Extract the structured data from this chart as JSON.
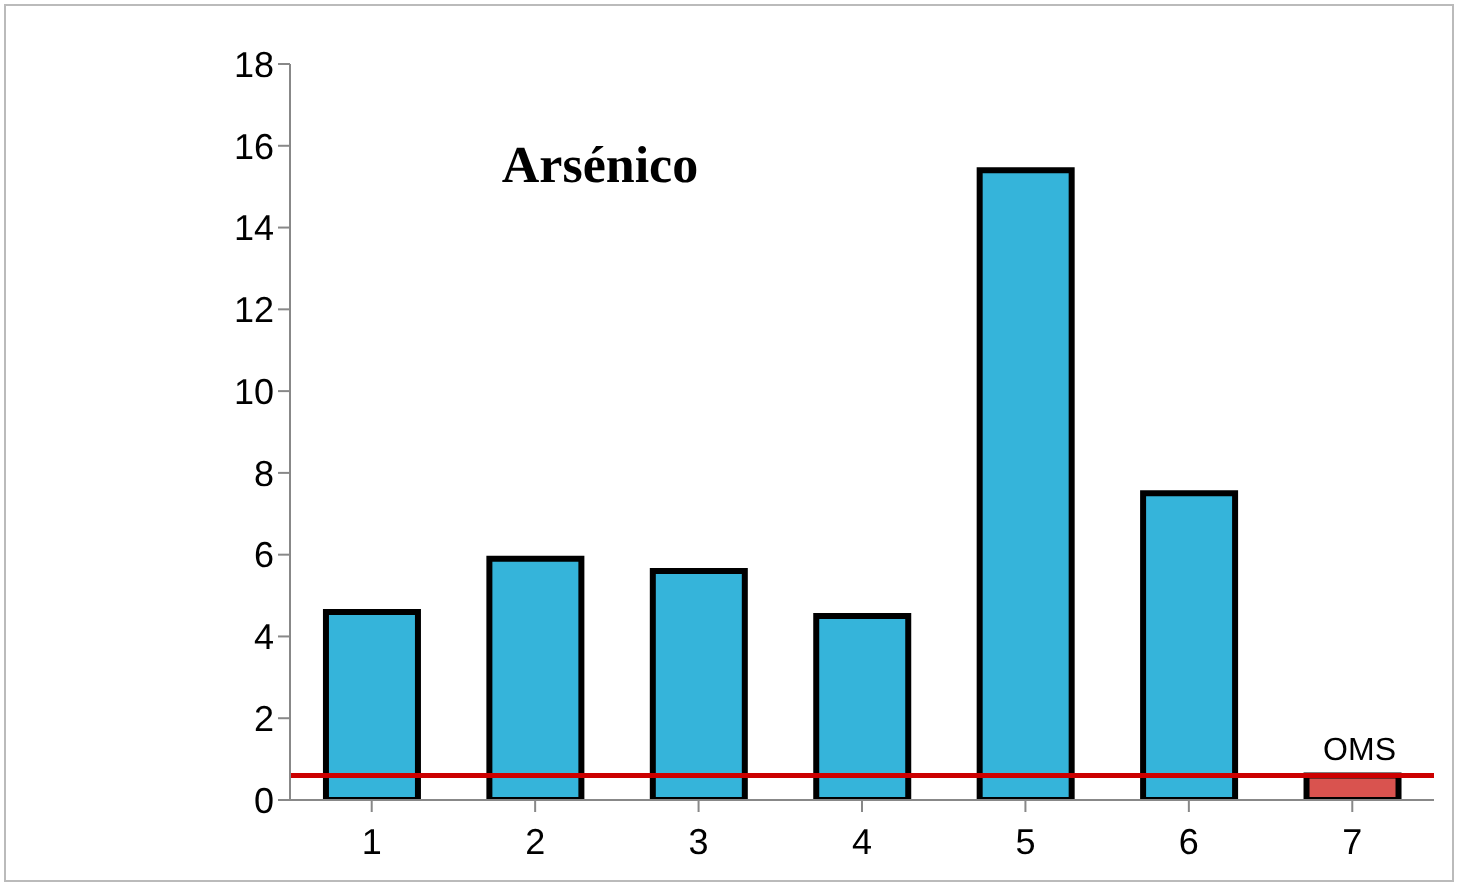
{
  "chart_data": {
    "type": "bar",
    "title": "Arsénico",
    "categories": [
      "1",
      "2",
      "3",
      "4",
      "5",
      "6",
      "7"
    ],
    "values": [
      4.6,
      5.9,
      5.6,
      4.5,
      15.4,
      7.5,
      0.6
    ],
    "colors": [
      "#35b4da",
      "#35b4da",
      "#35b4da",
      "#35b4da",
      "#35b4da",
      "#35b4da",
      "#d9534f"
    ],
    "ylim": [
      0,
      18
    ],
    "yticks": [
      0,
      2,
      4,
      6,
      8,
      10,
      12,
      14,
      16,
      18
    ],
    "grid": false,
    "ref_lines": [
      {
        "axis": "y",
        "value": 0.6,
        "label": "OMS",
        "color": "#cc0000"
      }
    ]
  }
}
